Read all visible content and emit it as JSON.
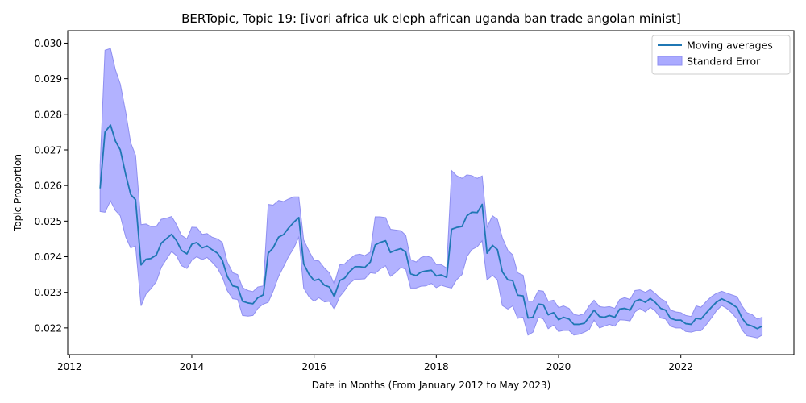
{
  "chart_data": {
    "type": "line",
    "title": "BERTopic, Topic 19: [ivori africa uk eleph african uganda ban trade angolan minist]",
    "xlabel": "Date in Months (From January 2012 to May 2023)",
    "ylabel": "Topic Proportion",
    "xlim": [
      2011.97,
      2023.85
    ],
    "ylim": [
      0.02125,
      0.03035
    ],
    "x_ticks": [
      2012,
      2014,
      2016,
      2018,
      2020,
      2022
    ],
    "x_tick_labels": [
      "2012",
      "2014",
      "2016",
      "2018",
      "2020",
      "2022"
    ],
    "y_ticks": [
      0.022,
      0.023,
      0.024,
      0.025,
      0.026,
      0.027,
      0.028,
      0.029,
      0.03
    ],
    "y_tick_labels": [
      "0.022",
      "0.023",
      "0.024",
      "0.025",
      "0.026",
      "0.027",
      "0.028",
      "0.029",
      "0.030"
    ],
    "grid": false,
    "legend_position": "top-right",
    "colors": {
      "line": "#1f77b4",
      "band": "#aaaaff",
      "band_edge": "#8f8ff0"
    },
    "series": [
      {
        "name": "Moving averages",
        "kind": "line",
        "x": [
          2012.5,
          2012.58,
          2012.67,
          2012.75,
          2012.83,
          2012.92,
          2013.0,
          2013.08,
          2013.17,
          2013.25,
          2013.33,
          2013.42,
          2013.5,
          2013.58,
          2013.67,
          2013.75,
          2013.83,
          2013.92,
          2014.0,
          2014.08,
          2014.17,
          2014.25,
          2014.33,
          2014.42,
          2014.5,
          2014.58,
          2014.67,
          2014.75,
          2014.83,
          2014.92,
          2015.0,
          2015.08,
          2015.17,
          2015.25,
          2015.33,
          2015.42,
          2015.5,
          2015.58,
          2015.67,
          2015.75,
          2015.83,
          2015.92,
          2016.0,
          2016.08,
          2016.17,
          2016.25,
          2016.33,
          2016.42,
          2016.5,
          2016.58,
          2016.67,
          2016.75,
          2016.83,
          2016.92,
          2017.0,
          2017.08,
          2017.17,
          2017.25,
          2017.33,
          2017.42,
          2017.5,
          2017.58,
          2017.67,
          2017.75,
          2017.83,
          2017.92,
          2018.0,
          2018.08,
          2018.17,
          2018.25,
          2018.33,
          2018.42,
          2018.5,
          2018.58,
          2018.67,
          2018.75,
          2018.83,
          2018.92,
          2019.0,
          2019.08,
          2019.17,
          2019.25,
          2019.33,
          2019.42,
          2019.5,
          2019.58,
          2019.67,
          2019.75,
          2019.83,
          2019.92,
          2020.0,
          2020.08,
          2020.17,
          2020.25,
          2020.33,
          2020.42,
          2020.5,
          2020.58,
          2020.67,
          2020.75,
          2020.83,
          2020.92,
          2021.0,
          2021.08,
          2021.17,
          2021.25,
          2021.33,
          2021.42,
          2021.5,
          2021.58,
          2021.67,
          2021.75,
          2021.83,
          2021.92,
          2022.0,
          2022.08,
          2022.17,
          2022.25,
          2022.33,
          2022.42,
          2022.5,
          2022.58,
          2022.67,
          2022.75,
          2022.83,
          2022.92,
          2023.0,
          2023.08,
          2023.17,
          2023.25,
          2023.33
        ],
        "y": [
          0.02592,
          0.0275,
          0.0277,
          0.02725,
          0.027,
          0.0263,
          0.02575,
          0.0256,
          0.02377,
          0.02393,
          0.02395,
          0.02405,
          0.02438,
          0.0245,
          0.02463,
          0.02445,
          0.02418,
          0.02408,
          0.02435,
          0.0244,
          0.02425,
          0.0243,
          0.0242,
          0.0241,
          0.0239,
          0.02345,
          0.02318,
          0.02315,
          0.02275,
          0.0227,
          0.02268,
          0.02285,
          0.02293,
          0.0241,
          0.02425,
          0.02455,
          0.02462,
          0.0248,
          0.02497,
          0.0251,
          0.0238,
          0.0235,
          0.02333,
          0.02337,
          0.0232,
          0.02315,
          0.02288,
          0.02333,
          0.0234,
          0.02358,
          0.02372,
          0.02372,
          0.0237,
          0.02385,
          0.02433,
          0.0244,
          0.02445,
          0.02412,
          0.02418,
          0.02423,
          0.02413,
          0.02352,
          0.02347,
          0.02357,
          0.0236,
          0.02362,
          0.02346,
          0.02349,
          0.02342,
          0.02477,
          0.02482,
          0.02485,
          0.02515,
          0.02525,
          0.02524,
          0.02547,
          0.0241,
          0.02432,
          0.0242,
          0.02358,
          0.02335,
          0.02333,
          0.02292,
          0.0229,
          0.02228,
          0.0223,
          0.02267,
          0.02265,
          0.02237,
          0.02243,
          0.02223,
          0.0223,
          0.02225,
          0.0221,
          0.0221,
          0.02213,
          0.0223,
          0.0225,
          0.02232,
          0.0223,
          0.02235,
          0.0223,
          0.02253,
          0.02255,
          0.0225,
          0.02275,
          0.0228,
          0.02272,
          0.02283,
          0.02272,
          0.02255,
          0.0225,
          0.02227,
          0.02222,
          0.02222,
          0.02212,
          0.0221,
          0.02227,
          0.02225,
          0.02243,
          0.02258,
          0.02272,
          0.02282,
          0.02275,
          0.02268,
          0.02257,
          0.02228,
          0.0221,
          0.02205,
          0.02198,
          0.02205
        ]
      },
      {
        "name": "Standard Error",
        "kind": "band",
        "x": [
          2012.5,
          2012.58,
          2012.67,
          2012.75,
          2012.83,
          2012.92,
          2013.0,
          2013.08,
          2013.17,
          2013.25,
          2013.33,
          2013.42,
          2013.5,
          2013.58,
          2013.67,
          2013.75,
          2013.83,
          2013.92,
          2014.0,
          2014.08,
          2014.17,
          2014.25,
          2014.33,
          2014.42,
          2014.5,
          2014.58,
          2014.67,
          2014.75,
          2014.83,
          2014.92,
          2015.0,
          2015.08,
          2015.17,
          2015.25,
          2015.33,
          2015.42,
          2015.5,
          2015.58,
          2015.67,
          2015.75,
          2015.83,
          2015.92,
          2016.0,
          2016.08,
          2016.17,
          2016.25,
          2016.33,
          2016.42,
          2016.5,
          2016.58,
          2016.67,
          2016.75,
          2016.83,
          2016.92,
          2017.0,
          2017.08,
          2017.17,
          2017.25,
          2017.33,
          2017.42,
          2017.5,
          2017.58,
          2017.67,
          2017.75,
          2017.83,
          2017.92,
          2018.0,
          2018.08,
          2018.17,
          2018.25,
          2018.33,
          2018.42,
          2018.5,
          2018.58,
          2018.67,
          2018.75,
          2018.83,
          2018.92,
          2019.0,
          2019.08,
          2019.17,
          2019.25,
          2019.33,
          2019.42,
          2019.5,
          2019.58,
          2019.67,
          2019.75,
          2019.83,
          2019.92,
          2020.0,
          2020.08,
          2020.17,
          2020.25,
          2020.33,
          2020.42,
          2020.5,
          2020.58,
          2020.67,
          2020.75,
          2020.83,
          2020.92,
          2021.0,
          2021.08,
          2021.17,
          2021.25,
          2021.33,
          2021.42,
          2021.5,
          2021.58,
          2021.67,
          2021.75,
          2021.83,
          2021.92,
          2022.0,
          2022.08,
          2022.17,
          2022.25,
          2022.33,
          2022.42,
          2022.5,
          2022.58,
          2022.67,
          2022.75,
          2022.83,
          2022.92,
          2023.0,
          2023.08,
          2023.17,
          2023.25,
          2023.33
        ],
        "lower": [
          0.02527,
          0.02525,
          0.02557,
          0.0253,
          0.02515,
          0.02455,
          0.02425,
          0.0243,
          0.02262,
          0.02295,
          0.0231,
          0.0233,
          0.0237,
          0.02392,
          0.02415,
          0.02403,
          0.02375,
          0.02367,
          0.0239,
          0.024,
          0.02392,
          0.02398,
          0.02385,
          0.02368,
          0.02343,
          0.02305,
          0.02282,
          0.0228,
          0.02235,
          0.02233,
          0.02235,
          0.02255,
          0.02267,
          0.02272,
          0.02303,
          0.02345,
          0.02372,
          0.024,
          0.02425,
          0.02455,
          0.02312,
          0.02287,
          0.02275,
          0.02285,
          0.02273,
          0.02275,
          0.02253,
          0.02288,
          0.02305,
          0.02325,
          0.02337,
          0.02337,
          0.02338,
          0.02355,
          0.02353,
          0.02365,
          0.02375,
          0.02345,
          0.02355,
          0.0237,
          0.02365,
          0.02312,
          0.02312,
          0.02317,
          0.02318,
          0.02325,
          0.02313,
          0.0232,
          0.02315,
          0.02312,
          0.02335,
          0.0235,
          0.024,
          0.0242,
          0.02428,
          0.02445,
          0.02335,
          0.02348,
          0.02335,
          0.02263,
          0.02253,
          0.02262,
          0.02227,
          0.0223,
          0.0218,
          0.02188,
          0.0223,
          0.02225,
          0.02198,
          0.02208,
          0.0219,
          0.02193,
          0.02193,
          0.0218,
          0.02182,
          0.02188,
          0.02195,
          0.02222,
          0.022,
          0.02205,
          0.0221,
          0.02205,
          0.02223,
          0.02222,
          0.0222,
          0.02245,
          0.02255,
          0.02245,
          0.02258,
          0.02248,
          0.02228,
          0.02225,
          0.02205,
          0.022,
          0.022,
          0.0219,
          0.02188,
          0.02192,
          0.02192,
          0.0221,
          0.02228,
          0.02248,
          0.02263,
          0.02255,
          0.02243,
          0.02225,
          0.02195,
          0.02178,
          0.02175,
          0.02172,
          0.0218
        ],
        "upper": [
          0.02657,
          0.0298,
          0.02985,
          0.02925,
          0.02885,
          0.02805,
          0.0272,
          0.02685,
          0.0249,
          0.02492,
          0.02485,
          0.02485,
          0.02505,
          0.02508,
          0.02513,
          0.0249,
          0.0246,
          0.0245,
          0.02483,
          0.02482,
          0.02463,
          0.02465,
          0.02455,
          0.0245,
          0.0244,
          0.02385,
          0.02355,
          0.0235,
          0.02313,
          0.02305,
          0.02302,
          0.02315,
          0.02318,
          0.02547,
          0.02545,
          0.02558,
          0.02555,
          0.02562,
          0.02568,
          0.02568,
          0.02447,
          0.02415,
          0.0239,
          0.02388,
          0.02368,
          0.02355,
          0.02323,
          0.02377,
          0.0238,
          0.02393,
          0.02405,
          0.02407,
          0.02403,
          0.02413,
          0.02512,
          0.02512,
          0.0251,
          0.02477,
          0.02475,
          0.02473,
          0.0246,
          0.02392,
          0.02385,
          0.02398,
          0.02402,
          0.02398,
          0.02378,
          0.02378,
          0.02368,
          0.02642,
          0.02628,
          0.0262,
          0.0263,
          0.02628,
          0.0262,
          0.02627,
          0.02483,
          0.02515,
          0.02505,
          0.02453,
          0.02418,
          0.02405,
          0.02355,
          0.02348,
          0.02275,
          0.02275,
          0.02305,
          0.02303,
          0.02275,
          0.02278,
          0.02257,
          0.02262,
          0.02255,
          0.02238,
          0.02235,
          0.0224,
          0.02262,
          0.02278,
          0.0226,
          0.02258,
          0.0226,
          0.02255,
          0.0228,
          0.02285,
          0.0228,
          0.02305,
          0.02307,
          0.023,
          0.02308,
          0.02297,
          0.02282,
          0.02275,
          0.0225,
          0.02245,
          0.02243,
          0.02235,
          0.02232,
          0.02262,
          0.02258,
          0.02275,
          0.02288,
          0.02297,
          0.02303,
          0.02298,
          0.02293,
          0.02288,
          0.02262,
          0.02243,
          0.02237,
          0.02225,
          0.0223
        ]
      }
    ]
  }
}
